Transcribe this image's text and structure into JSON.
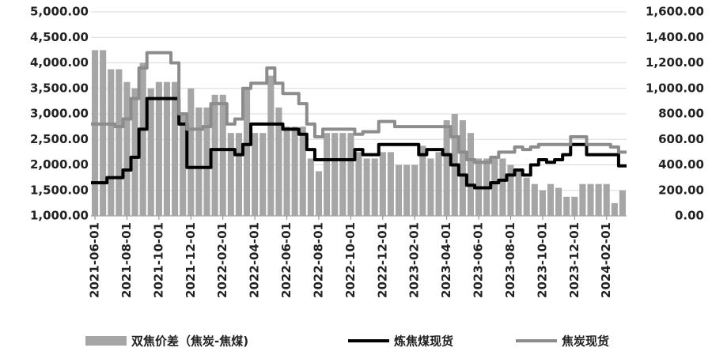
{
  "chart_data": {
    "type": "bar-line",
    "categories": [
      "2021-06-01",
      null,
      null,
      null,
      "2021-08-01",
      null,
      null,
      null,
      "2021-10-01",
      null,
      null,
      null,
      "2021-12-01",
      null,
      null,
      null,
      "2022-02-01",
      null,
      null,
      null,
      "2022-04-01",
      null,
      null,
      null,
      "2022-06-01",
      null,
      null,
      null,
      "2022-08-01",
      null,
      null,
      null,
      "2022-10-01",
      null,
      null,
      null,
      "2022-12-01",
      null,
      null,
      null,
      "2023-02-01",
      null,
      null,
      null,
      "2023-04-01",
      null,
      null,
      null,
      "2023-06-01",
      null,
      null,
      null,
      "2023-08-01",
      null,
      null,
      null,
      "2023-10-01",
      null,
      null,
      null,
      "2023-12-01",
      null,
      null,
      null,
      "2024-02-01",
      null,
      null
    ],
    "series": [
      {
        "name": "双焦价差（焦炭-焦煤)",
        "type": "bar",
        "axis": "y2",
        "color": "#a6a6a6",
        "values": [
          1300,
          1300,
          1150,
          1150,
          1050,
          1000,
          1200,
          1000,
          1050,
          1050,
          1050,
          800,
          1000,
          850,
          850,
          950,
          950,
          650,
          650,
          1000,
          650,
          650,
          1100,
          850,
          700,
          700,
          700,
          450,
          350,
          650,
          650,
          650,
          650,
          500,
          450,
          450,
          500,
          500,
          400,
          400,
          400,
          550,
          450,
          500,
          750,
          800,
          750,
          650,
          450,
          450,
          450,
          450,
          400,
          350,
          300,
          250,
          200,
          250,
          220,
          150,
          150,
          250,
          250,
          250,
          250,
          100,
          200
        ]
      },
      {
        "name": "炼焦煤现货",
        "type": "line",
        "axis": "y",
        "color": "#000000",
        "values": [
          1650,
          1650,
          1750,
          1750,
          1900,
          2150,
          2700,
          3300,
          3300,
          3300,
          3300,
          2800,
          1950,
          1950,
          1950,
          2300,
          2300,
          2300,
          2200,
          2400,
          2800,
          2800,
          2800,
          2800,
          2700,
          2700,
          2600,
          2300,
          2100,
          2100,
          2100,
          2100,
          2100,
          2300,
          2200,
          2200,
          2400,
          2400,
          2400,
          2400,
          2400,
          2200,
          2300,
          2300,
          2200,
          2000,
          1800,
          1600,
          1550,
          1550,
          1650,
          1700,
          1800,
          1900,
          1800,
          2000,
          2100,
          2050,
          2100,
          2200,
          2400,
          2400,
          2200,
          2200,
          2200,
          2200,
          1980
        ]
      },
      {
        "name": "焦炭现货",
        "type": "line",
        "axis": "y",
        "color": "#8c8c8c",
        "values": [
          2800,
          2800,
          2800,
          2750,
          2900,
          3300,
          3900,
          4200,
          4200,
          4200,
          4000,
          3000,
          2700,
          2700,
          2750,
          3200,
          3200,
          2800,
          2900,
          3500,
          3600,
          3600,
          3900,
          3600,
          3400,
          3400,
          3200,
          2800,
          2550,
          2700,
          2700,
          2700,
          2700,
          2600,
          2650,
          2650,
          2850,
          2850,
          2750,
          2750,
          2750,
          2750,
          2750,
          2750,
          2750,
          2550,
          2250,
          2100,
          2050,
          2050,
          2150,
          2250,
          2250,
          2350,
          2300,
          2350,
          2400,
          2400,
          2400,
          2400,
          2550,
          2550,
          2400,
          2400,
          2400,
          2350,
          2250
        ]
      }
    ],
    "ylim": [
      1000,
      5000
    ],
    "yticks": [
      {
        "value": 1000,
        "label": "1,000.00"
      },
      {
        "value": 1500,
        "label": "1,500.00"
      },
      {
        "value": 2000,
        "label": "2,000.00"
      },
      {
        "value": 2500,
        "label": "2,500.00"
      },
      {
        "value": 3000,
        "label": "3,000.00"
      },
      {
        "value": 3500,
        "label": "3,500.00"
      },
      {
        "value": 4000,
        "label": "4,000.00"
      },
      {
        "value": 4500,
        "label": "4,500.00"
      },
      {
        "value": 5000,
        "label": "5,000.00"
      }
    ],
    "y2lim": [
      0,
      1600
    ],
    "y2ticks": [
      {
        "value": 0,
        "label": "0.00"
      },
      {
        "value": 200,
        "label": "200.00"
      },
      {
        "value": 400,
        "label": "400.00"
      },
      {
        "value": 600,
        "label": "600.00"
      },
      {
        "value": 800,
        "label": "800.00"
      },
      {
        "value": 1000,
        "label": "1,000.00"
      },
      {
        "value": 1200,
        "label": "1,200.00"
      },
      {
        "value": 1400,
        "label": "1,400.00"
      },
      {
        "value": 1600,
        "label": "1,600.00"
      }
    ],
    "grid": true,
    "legend": "bottom"
  }
}
